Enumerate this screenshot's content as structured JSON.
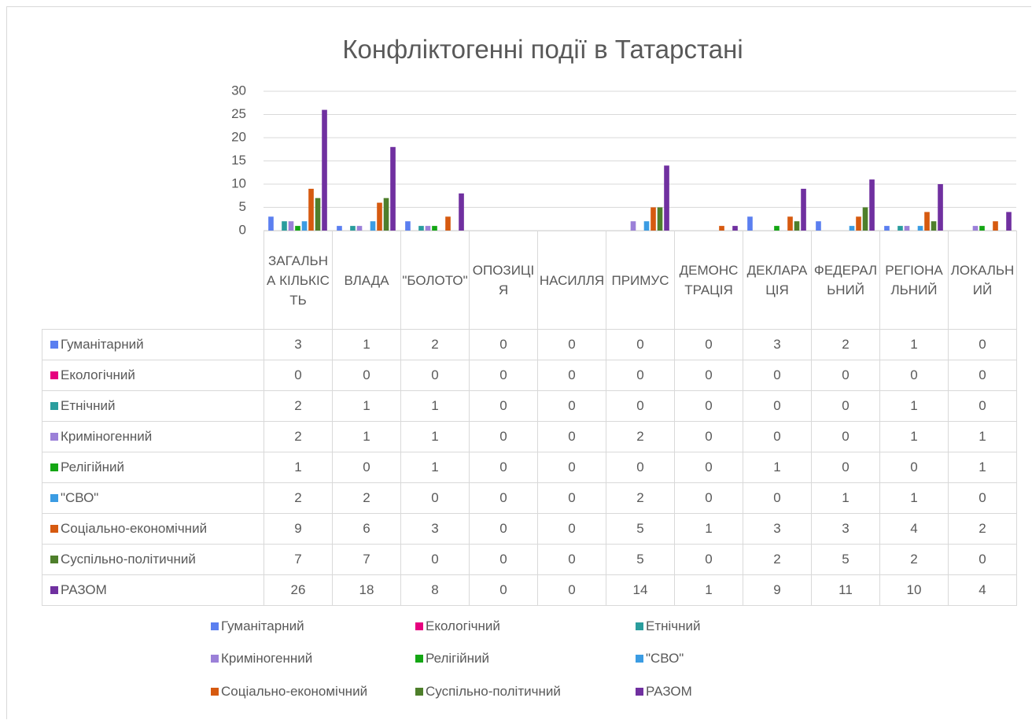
{
  "chart_data": {
    "type": "bar",
    "title": "Конфліктогенні події в Татарстані",
    "categories": [
      "ЗАГАЛЬНА КІЛЬКІСТЬ",
      "ВЛАДА",
      "\"БОЛОТО\"",
      "ОПОЗИЦІЯ",
      "НАСИЛЛЯ",
      "ПРИМУС",
      "ДЕМОНСТРАЦІЯ",
      "ДЕКЛАРАЦІЯ",
      "ФЕДЕРАЛЬНИЙ",
      "РЕГІОНАЛЬНИЙ",
      "ЛОКАЛЬНИЙ"
    ],
    "series": [
      {
        "name": "Гуманітарний",
        "color": "#5b7ff0",
        "values": [
          3,
          1,
          2,
          0,
          0,
          0,
          0,
          3,
          2,
          1,
          0
        ]
      },
      {
        "name": "Екологічний",
        "color": "#e6007e",
        "values": [
          0,
          0,
          0,
          0,
          0,
          0,
          0,
          0,
          0,
          0,
          0
        ]
      },
      {
        "name": "Етнічний",
        "color": "#2a9d9d",
        "values": [
          2,
          1,
          1,
          0,
          0,
          0,
          0,
          0,
          0,
          1,
          0
        ]
      },
      {
        "name": "Криміногенний",
        "color": "#9b80d8",
        "values": [
          2,
          1,
          1,
          0,
          0,
          2,
          0,
          0,
          0,
          1,
          1
        ]
      },
      {
        "name": "Релігійний",
        "color": "#14a614",
        "values": [
          1,
          0,
          1,
          0,
          0,
          0,
          0,
          1,
          0,
          0,
          1
        ]
      },
      {
        "name": "\"СВО\"",
        "color": "#3b9ce3",
        "values": [
          2,
          2,
          0,
          0,
          0,
          2,
          0,
          0,
          1,
          1,
          0
        ]
      },
      {
        "name": "Соціально-економічний",
        "color": "#d65a10",
        "values": [
          9,
          6,
          3,
          0,
          0,
          5,
          1,
          3,
          3,
          4,
          2
        ]
      },
      {
        "name": "Суспільно-політичний",
        "color": "#4e7f2b",
        "values": [
          7,
          7,
          0,
          0,
          0,
          5,
          0,
          2,
          5,
          2,
          0
        ]
      },
      {
        "name": "РАЗОМ",
        "color": "#7030a0",
        "values": [
          26,
          18,
          8,
          0,
          0,
          14,
          1,
          9,
          11,
          10,
          4
        ]
      }
    ],
    "ylim": [
      0,
      30
    ],
    "yticks": [
      0,
      5,
      10,
      15,
      20,
      25,
      30
    ],
    "grid": true
  }
}
